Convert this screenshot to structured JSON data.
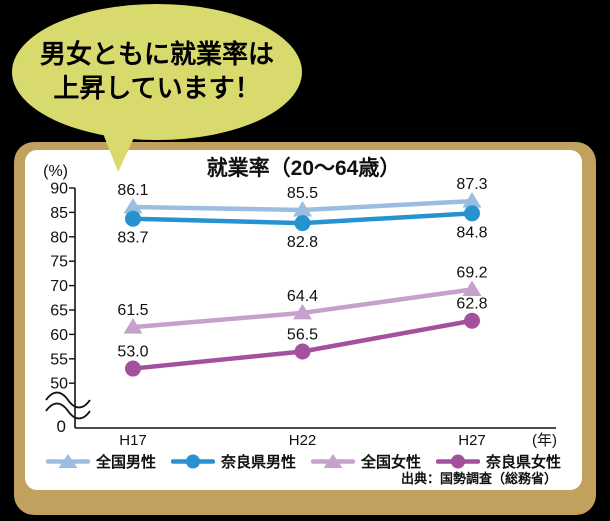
{
  "bubble": {
    "line1": "男女ともに就業率は",
    "line2": "上昇しています！",
    "bg_color": "#d8da6d"
  },
  "card": {
    "frame_color": "#c2a15e",
    "inner_color": "#ffffff"
  },
  "chart_data": {
    "type": "line",
    "title": "就業率（20～64歳）",
    "y_unit_label": "(%)",
    "x_unit_label": "(年)",
    "categories": [
      "H17",
      "H22",
      "H27"
    ],
    "series": [
      {
        "name": "全国男性",
        "values": [
          86.1,
          85.5,
          87.3
        ],
        "color": "#9bbde2",
        "marker": "triangle",
        "label_pos": "above"
      },
      {
        "name": "奈良県男性",
        "values": [
          83.7,
          82.8,
          84.8
        ],
        "color": "#2693d0",
        "marker": "circle",
        "label_pos": "below"
      },
      {
        "name": "全国女性",
        "values": [
          61.5,
          64.4,
          69.2
        ],
        "color": "#c6a1cc",
        "marker": "triangle",
        "label_pos": "above"
      },
      {
        "name": "奈良県女性",
        "values": [
          53.0,
          56.5,
          62.8
        ],
        "color": "#a3509d",
        "marker": "circle",
        "label_pos": "above"
      }
    ],
    "y_axis": {
      "ticks": [
        90,
        85,
        80,
        75,
        70,
        65,
        60,
        55,
        50
      ],
      "zero_label": "0",
      "axis_break": true
    },
    "ylim_display": [
      50,
      90
    ],
    "grid": false,
    "legend_position": "bottom",
    "source": "出典：国勢調査（総務省）"
  }
}
